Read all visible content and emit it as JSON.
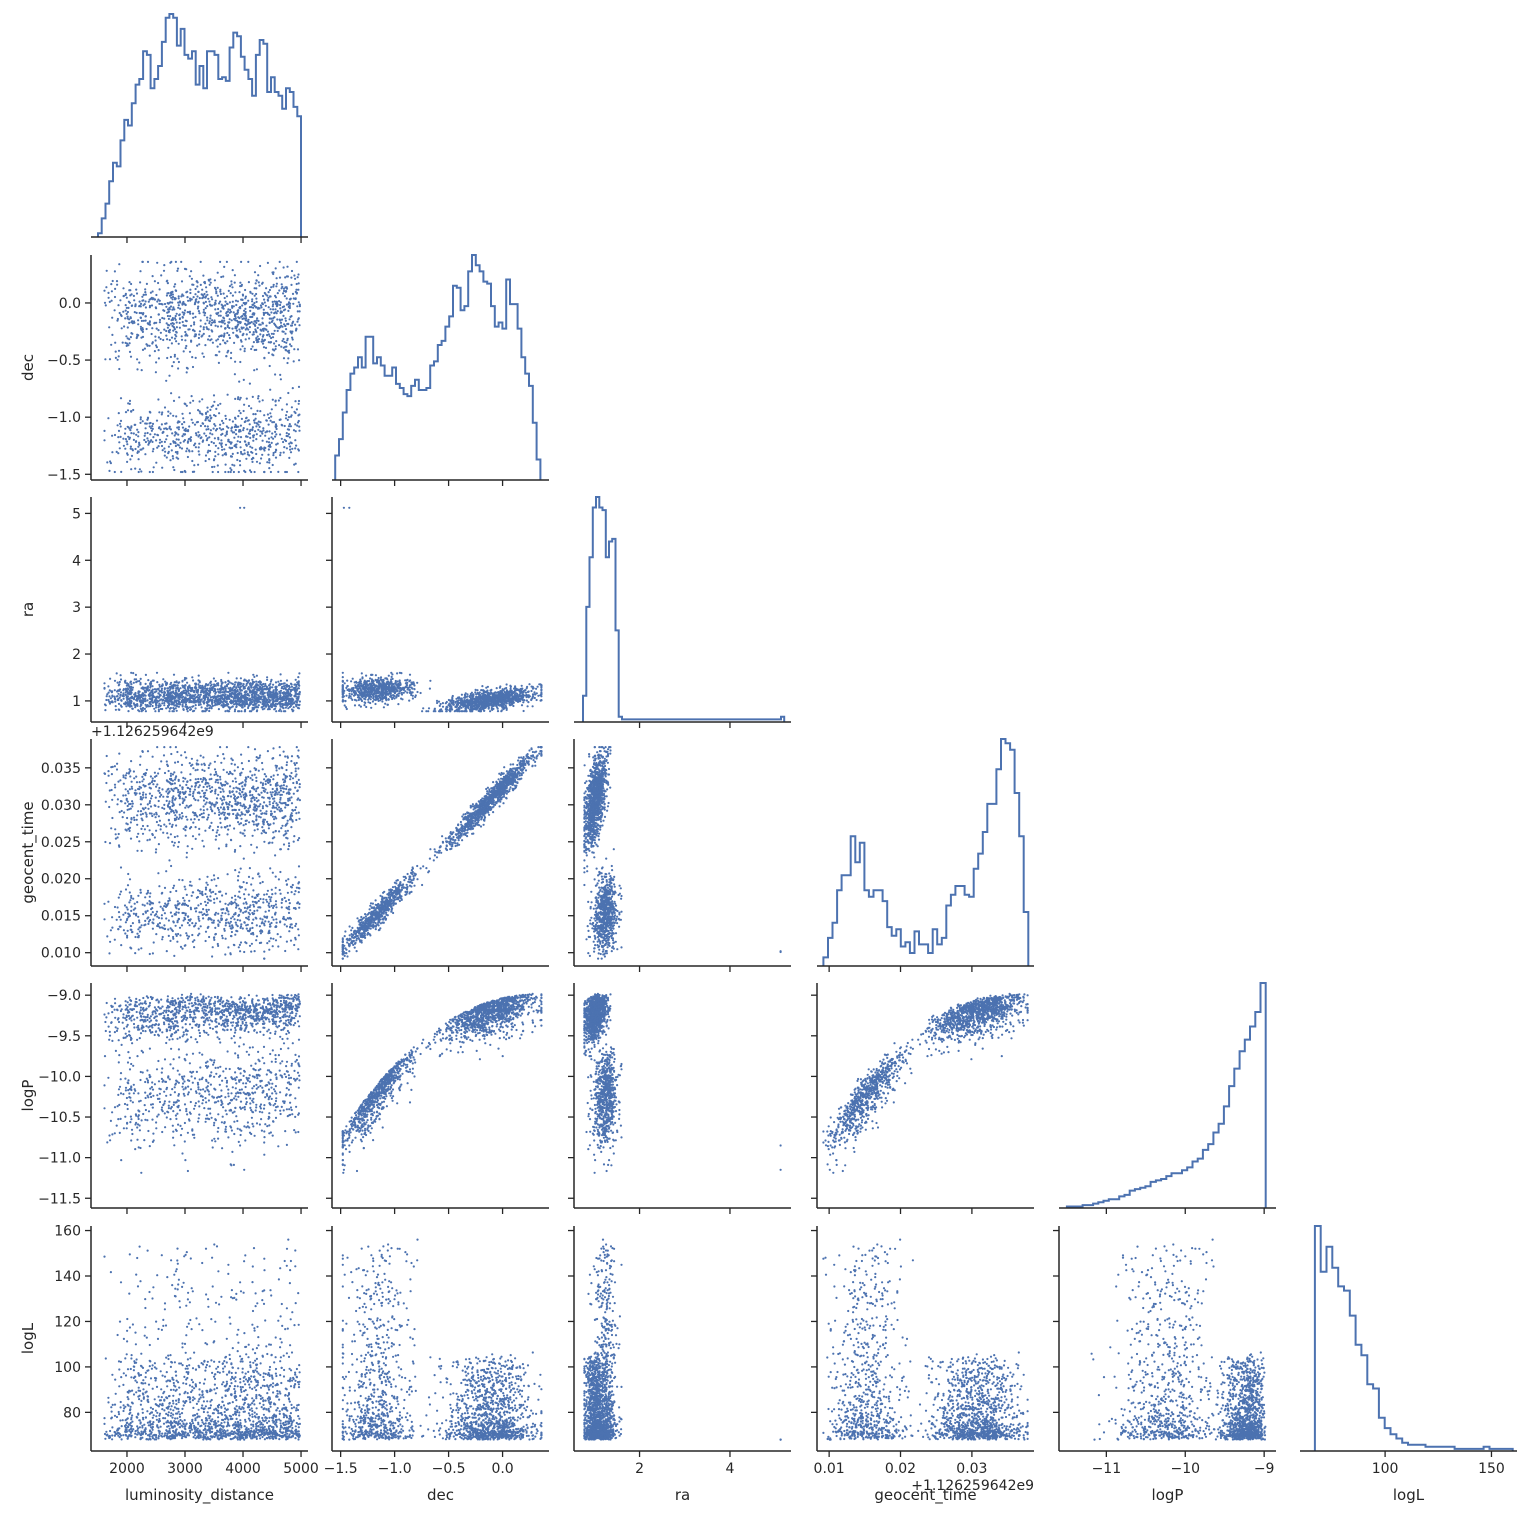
{
  "chart_data": {
    "type": "scatter",
    "title": "",
    "layout": "corner pair plot (histograms on diagonal, scatter below)",
    "grid": false,
    "color": "#4c72b0",
    "variables": [
      {
        "name": "luminosity_distance",
        "label": "luminosity_distance",
        "range": [
          1380,
          5120
        ],
        "ticks": [
          2000,
          3000,
          4000,
          5000
        ]
      },
      {
        "name": "dec",
        "label": "dec",
        "range": [
          -1.58,
          0.43
        ],
        "ticks": [
          -1.5,
          -1.0,
          -0.5,
          0.0
        ]
      },
      {
        "name": "ra",
        "label": "ra",
        "range": [
          0.55,
          5.35
        ],
        "ticks": [
          2,
          4
        ]
      },
      {
        "name": "geocent_time",
        "label": "geocent_time",
        "range": [
          0.0083,
          0.0387
        ],
        "ticks": [
          0.01,
          0.02,
          0.03
        ],
        "offset_text": "+1.126259642e9"
      },
      {
        "name": "logP",
        "label": "logP",
        "range": [
          -11.6,
          -8.85
        ],
        "ticks": [
          -11,
          -10,
          -9
        ]
      },
      {
        "name": "logL",
        "label": "logL",
        "range": [
          60,
          162
        ],
        "ticks": [
          100,
          150
        ]
      }
    ],
    "y_ticks": {
      "dec": [
        0.0,
        -0.5,
        -1.0,
        -1.5
      ],
      "ra": [
        5,
        4,
        3,
        2,
        1
      ],
      "geocent_time": [
        0.035,
        0.03,
        0.025,
        0.02,
        0.015,
        0.01
      ],
      "logP": [
        -9.0,
        -9.5,
        -10.0,
        -10.5,
        -11.0,
        -11.5
      ],
      "logL": [
        160,
        140,
        120,
        100,
        80
      ]
    },
    "y_offset_text": "+1.126259642e9",
    "y_ranges": {
      "dec": [
        -1.55,
        0.42
      ],
      "ra": [
        0.55,
        5.35
      ],
      "geocent_time": [
        0.0082,
        0.0389
      ],
      "logP": [
        -11.62,
        -8.85
      ],
      "logL": [
        63,
        162
      ]
    },
    "histograms": {
      "luminosity_distance": {
        "bins": [
          1500,
          5000
        ],
        "counts": [
          2,
          10,
          18,
          30,
          40,
          38,
          52,
          63,
          60,
          72,
          82,
          85,
          100,
          98,
          80,
          85,
          92,
          105,
          118,
          120,
          118,
          103,
          112,
          98,
          96,
          100,
          82,
          92,
          80,
          100,
          100,
          98,
          85,
          86,
          84,
          102,
          110,
          108,
          97,
          90,
          85,
          76,
          98,
          106,
          104,
          78,
          86,
          78,
          76,
          69,
          80,
          78,
          70,
          65
        ]
      },
      "dec": {
        "bins": [
          -1.55,
          0.35
        ],
        "counts": [
          12,
          20,
          33,
          44,
          52,
          55,
          60,
          55,
          70,
          70,
          57,
          60,
          56,
          51,
          51,
          55,
          47,
          45,
          42,
          41,
          46,
          49,
          44,
          44,
          45,
          56,
          58,
          66,
          68,
          75,
          80,
          95,
          94,
          83,
          85,
          102,
          110,
          105,
          102,
          97,
          96,
          85,
          75,
          77,
          74,
          98,
          86,
          86,
          74,
          60,
          52,
          46,
          28,
          10
        ]
      },
      "ra": {
        "bins": [
          0.75,
          5.2
        ],
        "counts": [
          10,
          44,
          63,
          82,
          86,
          82,
          81,
          63,
          69,
          70,
          35,
          2,
          1,
          1,
          1,
          1,
          1,
          1,
          1,
          1,
          1,
          1,
          1,
          1,
          1,
          1,
          1,
          1,
          1,
          1,
          1,
          1,
          1,
          1,
          1,
          1,
          1,
          1,
          1,
          1,
          1,
          1,
          1,
          1,
          1,
          1,
          1,
          1,
          1,
          1,
          1,
          1,
          1,
          1,
          1,
          1,
          1,
          1,
          1,
          1,
          1,
          2
        ]
      },
      "geocent_time": {
        "bins": [
          0.0092,
          0.0379
        ],
        "counts": [
          4,
          13,
          20,
          35,
          42,
          42,
          60,
          48,
          57,
          35,
          32,
          35,
          35,
          30,
          18,
          14,
          17,
          9,
          11,
          6,
          16,
          10,
          10,
          6,
          17,
          10,
          13,
          28,
          33,
          37,
          37,
          33,
          32,
          45,
          52,
          62,
          75,
          75,
          91,
          105,
          103,
          100,
          80,
          60,
          25
        ]
      },
      "logP": {
        "bins": [
          -11.5,
          -8.98
        ],
        "counts": [
          1,
          1,
          1,
          2,
          2,
          3,
          4,
          5,
          6,
          6,
          8,
          9,
          12,
          13,
          14,
          15,
          18,
          19,
          20,
          22,
          24,
          24,
          26,
          28,
          32,
          34,
          40,
          44,
          52,
          58,
          70,
          84,
          96,
          108,
          116,
          125,
          135,
          155
        ]
      },
      "logL": {
        "bins": [
          67,
          160
        ],
        "counts": [
          108,
          86,
          98,
          88,
          79,
          77,
          65,
          51,
          46,
          32,
          30,
          16,
          11,
          8,
          6,
          4,
          3,
          3,
          3,
          2,
          2,
          2,
          2,
          2,
          1,
          1,
          1,
          1,
          1,
          2,
          1,
          1,
          1,
          1
        ]
      }
    },
    "scatter_samples": 1800
  }
}
